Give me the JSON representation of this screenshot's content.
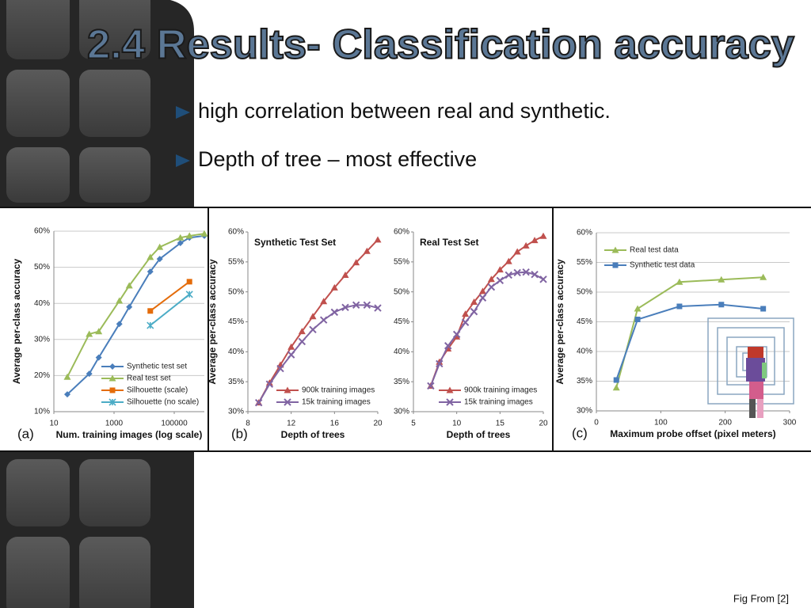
{
  "slide": {
    "title": "2.4 Results- Classification accuracy",
    "bullets": [
      "high correlation between real and synthetic.",
      "Depth of tree – most effective"
    ],
    "caption": "Fig From [2]"
  },
  "chart_data": [
    {
      "type": "line",
      "panel_label": "(a)",
      "ylabel": "Average per-class accuracy",
      "xlabel": "Num. training images (log scale)",
      "xscale": "log",
      "xlim": [
        10,
        1000000
      ],
      "xticks": [
        10,
        1000,
        100000
      ],
      "ylim": [
        10,
        60
      ],
      "yticks": [
        {
          "value": 10,
          "label": "10%"
        },
        {
          "value": 20,
          "label": "20%"
        },
        {
          "value": 30,
          "label": "30%"
        },
        {
          "value": 40,
          "label": "40%"
        },
        {
          "value": 50,
          "label": "50%"
        },
        {
          "value": 60,
          "label": "60%"
        }
      ],
      "grid": true,
      "legend": "lower right",
      "series": [
        {
          "name": "Synthetic test set",
          "color": "#4a7ebb",
          "marker": "diamond",
          "x": [
            28,
            150,
            310,
            1500,
            3200,
            16000,
            33000,
            160000,
            320000,
            1000000
          ],
          "values": [
            14.8,
            20.5,
            25,
            34.3,
            39,
            48.8,
            52.3,
            56.7,
            58.2,
            58.7
          ]
        },
        {
          "name": "Real test set",
          "color": "#9bbb59",
          "marker": "triangle",
          "x": [
            28,
            150,
            310,
            1500,
            3200,
            16000,
            33000,
            160000,
            320000,
            1000000
          ],
          "values": [
            19.6,
            31.5,
            32.2,
            40.7,
            44.9,
            52.8,
            55.6,
            58.2,
            58.7,
            59.3
          ]
        },
        {
          "name": "Silhouette (scale)",
          "color": "#e46c0a",
          "marker": "square",
          "x": [
            16000,
            320000
          ],
          "values": [
            37.9,
            46
          ]
        },
        {
          "name": "Silhouette (no scale)",
          "color": "#4bacc6",
          "marker": "cross",
          "x": [
            16000,
            320000
          ],
          "values": [
            33.9,
            42.5
          ]
        }
      ]
    },
    {
      "type": "line",
      "panel_label": "(b)",
      "title": "Synthetic Test Set",
      "ylabel": "Average per-class accuracy",
      "xlabel": "Depth of trees",
      "xlim": [
        8,
        20
      ],
      "xticks": [
        8,
        12,
        16,
        20
      ],
      "ylim": [
        30,
        60
      ],
      "yticks": [
        {
          "value": 30,
          "label": "30%"
        },
        {
          "value": 35,
          "label": "35%"
        },
        {
          "value": 40,
          "label": "40%"
        },
        {
          "value": 45,
          "label": "45%"
        },
        {
          "value": 50,
          "label": "50%"
        },
        {
          "value": 55,
          "label": "55%"
        },
        {
          "value": 60,
          "label": "60%"
        }
      ],
      "grid": false,
      "legend": "lower right",
      "series": [
        {
          "name": "900k training images",
          "color": "#c0504d",
          "marker": "triangle",
          "x": [
            9,
            10,
            11,
            12,
            13,
            14,
            15,
            16,
            17,
            18,
            19,
            20
          ],
          "values": [
            31.5,
            34.8,
            37.8,
            40.8,
            43.4,
            45.9,
            48.4,
            50.7,
            52.8,
            54.9,
            56.8,
            58.7
          ]
        },
        {
          "name": "15k training images",
          "color": "#8064a2",
          "marker": "x",
          "x": [
            9,
            10,
            11,
            12,
            13,
            14,
            15,
            16,
            17,
            18,
            19,
            20
          ],
          "values": [
            31.5,
            34.6,
            37.2,
            39.5,
            41.7,
            43.7,
            45.3,
            46.6,
            47.4,
            47.8,
            47.8,
            47.3
          ]
        }
      ]
    },
    {
      "type": "line",
      "title": "Real Test Set",
      "xlabel": "Depth of trees",
      "xlim": [
        5,
        20
      ],
      "xticks": [
        5,
        10,
        15,
        20
      ],
      "ylim": [
        30,
        60
      ],
      "yticks": [
        {
          "value": 30,
          "label": "30%"
        },
        {
          "value": 35,
          "label": "35%"
        },
        {
          "value": 40,
          "label": "40%"
        },
        {
          "value": 45,
          "label": "45%"
        },
        {
          "value": 50,
          "label": "50%"
        },
        {
          "value": 55,
          "label": "55%"
        },
        {
          "value": 60,
          "label": "60%"
        }
      ],
      "grid": false,
      "legend": "lower right",
      "series": [
        {
          "name": "900k training images",
          "color": "#c0504d",
          "marker": "triangle",
          "x": [
            7,
            8,
            9,
            10,
            11,
            12,
            13,
            14,
            15,
            16,
            17,
            18,
            19,
            20
          ],
          "values": [
            34.3,
            38.3,
            40.5,
            42.5,
            46.3,
            48.3,
            50.1,
            52.1,
            53.7,
            55.1,
            56.7,
            57.7,
            58.6,
            59.3
          ]
        },
        {
          "name": "15k training images",
          "color": "#8064a2",
          "marker": "x",
          "x": [
            7,
            8,
            9,
            10,
            11,
            12,
            13,
            14,
            15,
            16,
            17,
            18,
            19,
            20
          ],
          "values": [
            34.3,
            38.0,
            41.0,
            42.9,
            44.9,
            46.7,
            49.0,
            50.8,
            51.9,
            52.8,
            53.2,
            53.3,
            52.9,
            52.1
          ]
        }
      ]
    },
    {
      "type": "line",
      "panel_label": "(c)",
      "ylabel": "Average per-class accuracy",
      "xlabel": "Maximum probe offset (pixel meters)",
      "xlim": [
        0,
        300
      ],
      "xticks": [
        0,
        100,
        200,
        300
      ],
      "ylim": [
        30,
        60
      ],
      "yticks": [
        {
          "value": 30,
          "label": "30%"
        },
        {
          "value": 35,
          "label": "35%"
        },
        {
          "value": 40,
          "label": "40%"
        },
        {
          "value": 45,
          "label": "45%"
        },
        {
          "value": 50,
          "label": "50%"
        },
        {
          "value": 55,
          "label": "55%"
        },
        {
          "value": 60,
          "label": "60%"
        }
      ],
      "grid": true,
      "legend": "upper left",
      "series": [
        {
          "name": "Real test data",
          "color": "#9bbb59",
          "marker": "triangle",
          "x": [
            31,
            64,
            129,
            194,
            259
          ],
          "values": [
            33.9,
            47.2,
            51.7,
            52.1,
            52.5
          ]
        },
        {
          "name": "Synthetic test data",
          "color": "#4a7ebb",
          "marker": "square",
          "x": [
            31,
            64,
            129,
            194,
            259
          ],
          "values": [
            35.2,
            45.4,
            47.6,
            47.9,
            47.2
          ]
        }
      ]
    }
  ]
}
